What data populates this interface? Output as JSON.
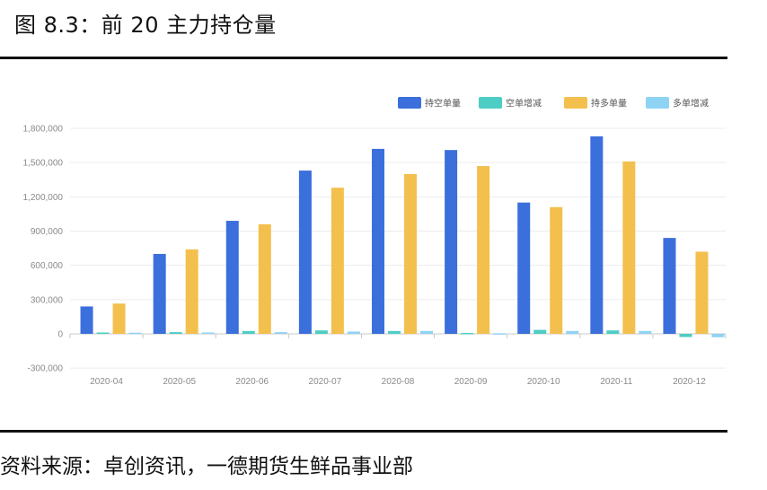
{
  "figure": {
    "title": "图 8.3：前 20 主力持仓量",
    "source": "资料来源：卓创资讯，一德期货生鲜品事业部"
  },
  "chart_data": {
    "type": "bar",
    "categories": [
      "2020-04",
      "2020-05",
      "2020-06",
      "2020-07",
      "2020-08",
      "2020-09",
      "2020-10",
      "2020-11",
      "2020-12"
    ],
    "series": [
      {
        "name": "持空单量",
        "color": "#3b6fdc",
        "values": [
          240000,
          700000,
          990000,
          1430000,
          1620000,
          1610000,
          1150000,
          1730000,
          840000
        ]
      },
      {
        "name": "空单增减",
        "color": "#4ecdc4",
        "values": [
          12000,
          15000,
          25000,
          30000,
          25000,
          8000,
          35000,
          30000,
          -28000
        ]
      },
      {
        "name": "持多单量",
        "color": "#f3c04e",
        "values": [
          265000,
          740000,
          960000,
          1280000,
          1400000,
          1470000,
          1110000,
          1510000,
          720000
        ]
      },
      {
        "name": "多单增减",
        "color": "#8fd3f4",
        "values": [
          10000,
          12000,
          15000,
          20000,
          25000,
          5000,
          25000,
          25000,
          -30000
        ]
      }
    ],
    "yticks": [
      -300000,
      0,
      300000,
      600000,
      900000,
      1200000,
      1500000,
      1800000
    ],
    "ytick_labels": [
      "-300,000",
      "0",
      "300,000",
      "600,000",
      "900,000",
      "1,200,000",
      "1,500,000",
      "1,800,000"
    ],
    "ylim": [
      -300000,
      1800000
    ],
    "grid": true,
    "legend": "top-right"
  }
}
